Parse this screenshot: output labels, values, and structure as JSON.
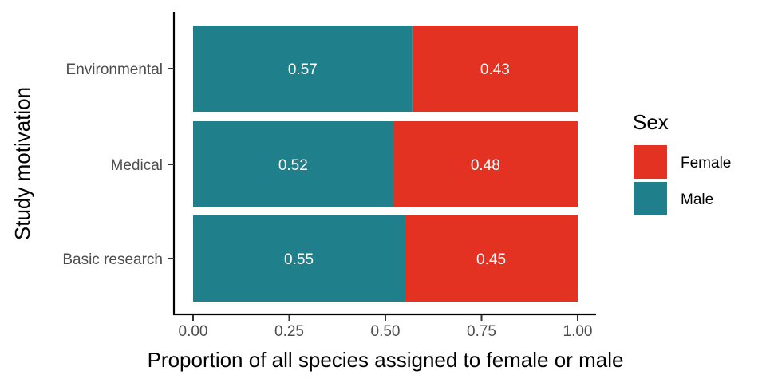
{
  "chart_data": {
    "type": "bar",
    "orientation": "horizontal",
    "stacked": true,
    "categories": [
      "Basic research",
      "Medical",
      "Environmental"
    ],
    "series": [
      {
        "name": "Male",
        "values": [
          0.55,
          0.52,
          0.57
        ],
        "color": "#1F7F8A"
      },
      {
        "name": "Female",
        "values": [
          0.45,
          0.48,
          0.43
        ],
        "color": "#E33122"
      }
    ],
    "data_labels": {
      "Male": [
        "0.55",
        "0.52",
        "0.57"
      ],
      "Female": [
        "0.45",
        "0.48",
        "0.43"
      ]
    },
    "xlabel": "Proportion of all species assigned to female or male",
    "ylabel": "Study motivation",
    "xlim": [
      0,
      1
    ],
    "xticks": [
      0,
      0.25,
      0.5,
      0.75,
      1
    ],
    "xtick_labels": [
      "0.00",
      "0.25",
      "0.50",
      "0.75",
      "1.00"
    ],
    "grid": false,
    "legend": {
      "title": "Sex",
      "position": "right",
      "entries": [
        {
          "label": "Female",
          "color": "#E33122"
        },
        {
          "label": "Male",
          "color": "#1F7F8A"
        }
      ]
    }
  }
}
